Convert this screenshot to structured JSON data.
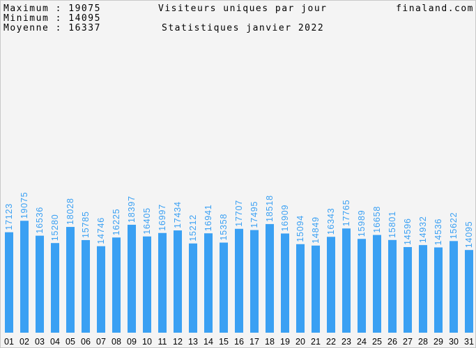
{
  "header": {
    "stats": [
      {
        "label": "Maximum",
        "value": "19075"
      },
      {
        "label": "Minimum",
        "value": "14095"
      },
      {
        "label": "Moyenne",
        "value": "16337"
      }
    ],
    "title": "Visiteurs uniques par jour",
    "subtitle": "Statistiques janvier 2022",
    "site": "finaland.com"
  },
  "colors": {
    "bar": "#3aa0f3",
    "value_label": "#3aa0f3",
    "background": "#f4f4f4",
    "border": "#c8c8c8",
    "text": "#000000"
  },
  "chart_data": {
    "type": "bar",
    "title": "Visiteurs uniques par jour",
    "subtitle": "Statistiques janvier 2022",
    "xlabel": "",
    "ylabel": "",
    "ylim": [
      0,
      35000
    ],
    "grid": false,
    "categories": [
      "01",
      "02",
      "03",
      "04",
      "05",
      "06",
      "07",
      "08",
      "09",
      "10",
      "11",
      "12",
      "13",
      "14",
      "15",
      "16",
      "17",
      "18",
      "19",
      "20",
      "21",
      "22",
      "23",
      "24",
      "25",
      "26",
      "27",
      "28",
      "29",
      "30",
      "31"
    ],
    "values": [
      17123,
      19075,
      16536,
      15280,
      18028,
      15785,
      14746,
      16225,
      18397,
      16405,
      16997,
      17434,
      15212,
      16941,
      15358,
      17707,
      17495,
      18518,
      16909,
      15094,
      14849,
      16343,
      17765,
      15989,
      16658,
      15801,
      14596,
      14932,
      14536,
      15622,
      14095
    ]
  }
}
